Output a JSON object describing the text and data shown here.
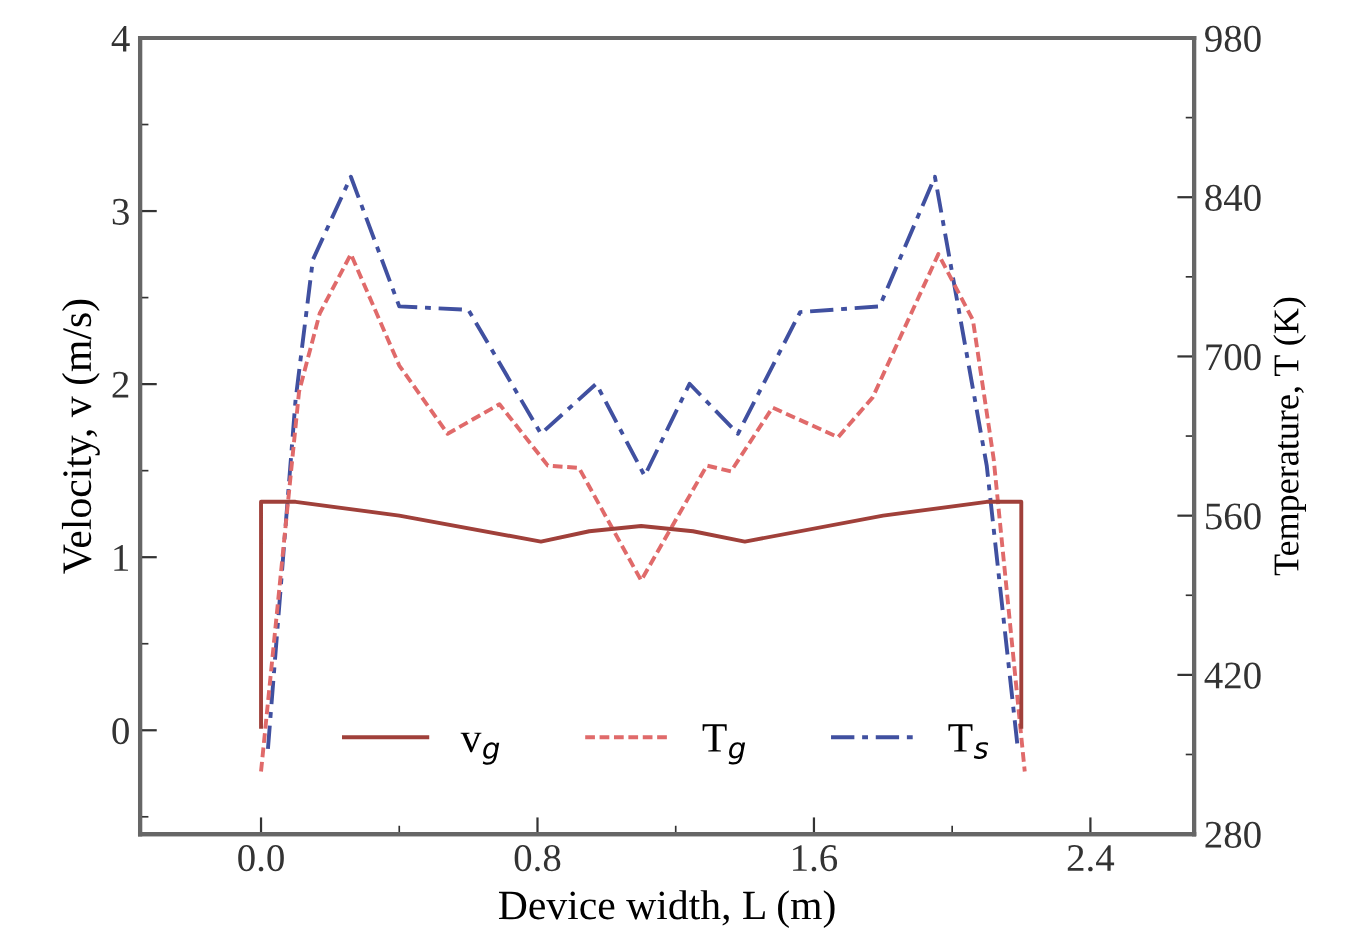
{
  "chart_data": {
    "type": "line",
    "xlabel": "Device width, L (m)",
    "ylabel": "Velocity, v (m/s)",
    "y2label": "Temperature, T (K)",
    "xlim": [
      -0.35,
      2.7
    ],
    "xticks": [
      {
        "value": 0,
        "label": "0.0"
      },
      {
        "value": 0.4,
        "label": null
      },
      {
        "value": 0.8,
        "label": "0.8"
      },
      {
        "value": 1.2,
        "label": null
      },
      {
        "value": 1.6,
        "label": "1.6"
      },
      {
        "value": 2.0,
        "label": null
      },
      {
        "value": 2.4,
        "label": "2.4"
      }
    ],
    "ylim": [
      -0.6,
      4
    ],
    "yticks": [
      {
        "value": -0.5,
        "label": null
      },
      0,
      {
        "value": 0.5,
        "label": null
      },
      1,
      {
        "value": 1.5,
        "label": null
      },
      2,
      {
        "value": 2.5,
        "label": null
      },
      3,
      {
        "value": 3.5,
        "label": null
      },
      4
    ],
    "y2lim": [
      280,
      980
    ],
    "y2ticks": [
      280,
      {
        "value": 350,
        "label": null
      },
      420,
      {
        "value": 490,
        "label": null
      },
      560,
      {
        "value": 630,
        "label": null
      },
      700,
      {
        "value": 770,
        "label": null
      },
      840,
      {
        "value": 910,
        "label": null
      },
      980
    ],
    "grid": false,
    "legend": "bottom",
    "marker": "none",
    "series": [
      {
        "name": "v$_{g}$",
        "color": "#a0403a",
        "line_style": "solid",
        "x": [
          0,
          0,
          0.1,
          0.4,
          0.81,
          0.95,
          1.1,
          1.25,
          1.4,
          1.8,
          2.1,
          2.2,
          2.2
        ],
        "values": [
          0.02,
          1.32,
          1.32,
          1.24,
          1.09,
          1.15,
          1.18,
          1.15,
          1.09,
          1.24,
          1.32,
          1.32,
          0.02
        ]
      },
      {
        "name": "T$_{g}$",
        "color": "#e06a6a",
        "line_style": "dashed",
        "axis": "y2",
        "x": [
          0.0,
          0.11,
          0.17,
          0.26,
          0.4,
          0.54,
          0.69,
          0.83,
          0.92,
          1.1,
          1.29,
          1.36,
          1.48,
          1.67,
          1.77,
          1.96,
          2.06,
          2.12,
          2.21
        ],
        "values": [
          335,
          669,
          738,
          790,
          692,
          632,
          658,
          604,
          602,
          503,
          604,
          599,
          655,
          629,
          664,
          790,
          732,
          610,
          335
        ]
      },
      {
        "name": "T$_{s}$",
        "color": "#4050a0",
        "line_style": "dashdot",
        "axis": "y2",
        "x": [
          0.02,
          0.1,
          0.15,
          0.26,
          0.4,
          0.6,
          0.81,
          0.97,
          1.11,
          1.24,
          1.38,
          1.56,
          1.79,
          1.95,
          2.1,
          2.19
        ],
        "values": [
          355,
          662,
          785,
          858,
          744,
          741,
          632,
          676,
          595,
          676,
          632,
          739,
          744,
          858,
          604,
          355
        ]
      }
    ]
  }
}
